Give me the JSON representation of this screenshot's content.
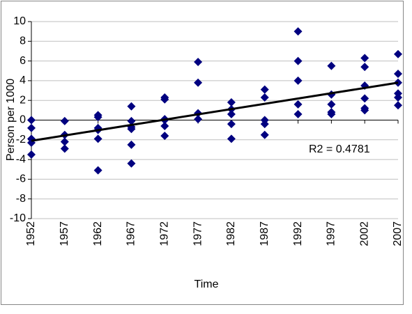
{
  "chart_data": {
    "type": "scatter",
    "x_label": "Time",
    "y_label": "Person per 1000",
    "annotation": "R2 = 0.4781",
    "xlim": [
      1952,
      2007
    ],
    "xticks": [
      1952,
      1957,
      1962,
      1967,
      1972,
      1977,
      1982,
      1987,
      1992,
      1997,
      2002,
      2007
    ],
    "ylim": [
      -10,
      10
    ],
    "yticks": [
      -10,
      -8,
      -6,
      -4,
      -2,
      0,
      2,
      4,
      6,
      8,
      10
    ],
    "grid": true,
    "series": [
      {
        "color": "#000080",
        "x": [
          1952,
          1952,
          1952,
          1952,
          1952,
          1957,
          1957,
          1957,
          1957,
          1962,
          1962,
          1962,
          1962,
          1962,
          1962,
          1967,
          1967,
          1967,
          1967,
          1967,
          1967,
          1972,
          1972,
          1972,
          1972,
          1972,
          1972,
          1977,
          1977,
          1977,
          1977,
          1982,
          1982,
          1982,
          1982,
          1982,
          1987,
          1987,
          1987,
          1987,
          1987,
          1992,
          1992,
          1992,
          1992,
          1992,
          1997,
          1997,
          1997,
          1997,
          1997,
          2002,
          2002,
          2002,
          2002,
          2002,
          2002,
          2007,
          2007,
          2007,
          2007,
          2007,
          2007
        ],
        "values": [
          0,
          -0.8,
          -1.9,
          -2.3,
          -3.5,
          -0.1,
          -1.5,
          -2.2,
          -2.9,
          0.5,
          0.3,
          -0.8,
          -1.0,
          -1.9,
          -5.1,
          1.4,
          -0.1,
          -0.7,
          -0.9,
          -2.5,
          -4.4,
          2.3,
          2.1,
          0.1,
          0,
          -0.6,
          -1.6,
          5.9,
          3.8,
          0.7,
          0.1,
          1.8,
          1.1,
          0.6,
          -0.4,
          -1.9,
          3.1,
          2.3,
          0,
          -0.4,
          -1.5,
          9,
          6,
          4,
          1.6,
          0.6,
          5.5,
          2.6,
          1.6,
          0.8,
          0.6,
          6.3,
          5.4,
          3.5,
          2.2,
          1.2,
          1.0,
          6.7,
          4.7,
          3.8,
          2.7,
          2.3,
          1.5
        ]
      }
    ],
    "trendline": {
      "color": "#000000",
      "x": [
        1952,
        2007
      ],
      "values": [
        -2.1,
        3.8
      ]
    }
  }
}
